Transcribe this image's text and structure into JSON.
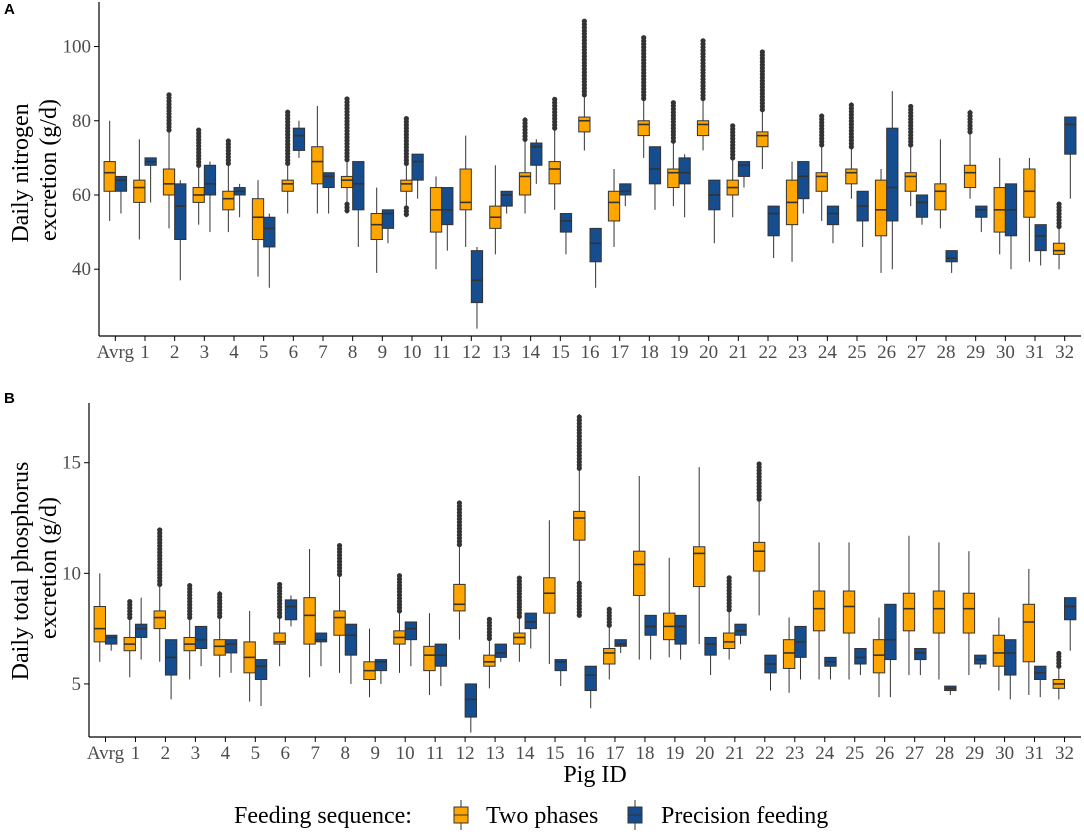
{
  "colors": {
    "two_phases": "#FFA500",
    "precision": "#154D8E",
    "outlier": "#333333",
    "axis": "#000000"
  },
  "chart_data": [
    {
      "type": "box",
      "panel": "A",
      "ylabel": [
        "Daily nitrogen",
        "excretion (g/d)"
      ],
      "xlabel": "",
      "ylim": [
        22,
        112
      ],
      "yticks": [
        40,
        60,
        80,
        100
      ],
      "categories": [
        "Avrg",
        "1",
        "2",
        "3",
        "4",
        "5",
        "6",
        "7",
        "8",
        "9",
        "10",
        "11",
        "12",
        "13",
        "14",
        "15",
        "16",
        "17",
        "18",
        "19",
        "20",
        "21",
        "22",
        "23",
        "24",
        "25",
        "26",
        "27",
        "28",
        "29",
        "30",
        "31",
        "32"
      ],
      "series": [
        {
          "name": "Two phases",
          "values": [
            [
              53,
              61,
              66,
              69,
              80
            ],
            [
              48,
              58,
              62,
              64,
              75
            ],
            [
              51,
              60,
              63,
              67,
              87
            ],
            [
              52,
              58,
              60,
              62,
              78
            ],
            [
              50,
              56,
              59,
              61,
              75
            ],
            [
              38,
              48,
              54,
              59,
              64
            ],
            [
              55,
              61,
              63,
              64,
              83
            ],
            [
              55,
              63,
              69,
              73,
              84
            ],
            [
              55,
              62,
              64,
              65,
              86
            ],
            [
              39,
              48,
              52,
              55,
              62
            ],
            [
              54,
              61,
              63,
              64,
              81
            ],
            [
              40,
              50,
              56,
              62,
              65
            ],
            [
              46,
              56,
              58,
              67,
              76
            ],
            [
              44,
              51,
              54,
              57,
              68
            ],
            [
              55,
              60,
              65,
              66,
              81
            ],
            [
              56,
              63,
              67,
              69,
              86
            ],
            [
              72,
              77,
              80,
              81,
              107
            ],
            [
              46,
              53,
              58,
              61,
              67
            ],
            [
              70,
              76,
              79,
              80,
              103
            ],
            [
              57,
              62,
              66,
              67,
              85
            ],
            [
              72,
              76,
              79,
              80,
              102
            ],
            [
              54,
              60,
              62,
              64,
              79
            ],
            [
              67,
              73,
              76,
              77,
              99
            ],
            [
              42,
              52,
              58,
              64,
              69
            ],
            [
              53,
              61,
              65,
              66,
              82
            ],
            [
              59,
              63,
              66,
              67,
              85
            ],
            [
              39,
              49,
              56,
              64,
              67
            ],
            [
              57,
              61,
              65,
              66,
              84
            ],
            [
              51,
              56,
              61,
              63,
              75
            ],
            [
              59,
              62,
              66,
              68,
              83
            ],
            [
              44,
              50,
              56,
              62,
              70
            ],
            [
              42,
              54,
              61,
              67,
              70
            ],
            [
              40,
              44,
              45,
              47,
              58
            ]
          ]
        },
        {
          "name": "Precision feeding",
          "values": [
            [
              55,
              61,
              64,
              65,
              65
            ],
            [
              58,
              68,
              69,
              70,
              70
            ],
            [
              37,
              48,
              57,
              63,
              64
            ],
            [
              50,
              60,
              63,
              68,
              69
            ],
            [
              54,
              60,
              61,
              62,
              63
            ],
            [
              35,
              46,
              51,
              54,
              55
            ],
            [
              70,
              72,
              76,
              78,
              80
            ],
            [
              55,
              62,
              65,
              66,
              66
            ],
            [
              46,
              56,
              63,
              69,
              69
            ],
            [
              47,
              51,
              55,
              56,
              56
            ],
            [
              59,
              64,
              69,
              71,
              71
            ],
            [
              45,
              52,
              56,
              62,
              62
            ],
            [
              24,
              31,
              37,
              45,
              46
            ],
            [
              55,
              57,
              60,
              61,
              61
            ],
            [
              63,
              68,
              73,
              74,
              75
            ],
            [
              44,
              50,
              53,
              55,
              55
            ],
            [
              35,
              42,
              47,
              51,
              51
            ],
            [
              57,
              60,
              61,
              63,
              63
            ],
            [
              56,
              63,
              67,
              73,
              73
            ],
            [
              54,
              63,
              66,
              70,
              71
            ],
            [
              47,
              56,
              60,
              64,
              64
            ],
            [
              62,
              65,
              68,
              69,
              69
            ],
            [
              43,
              49,
              55,
              57,
              57
            ],
            [
              55,
              59,
              65,
              69,
              69
            ],
            [
              47,
              52,
              55,
              57,
              57
            ],
            [
              46,
              53,
              57,
              61,
              61
            ],
            [
              40,
              53,
              62,
              78,
              88
            ],
            [
              52,
              54,
              58,
              60,
              60
            ],
            [
              39,
              42,
              43,
              45,
              45
            ],
            [
              50,
              54,
              56,
              57,
              57
            ],
            [
              40,
              49,
              56,
              63,
              63
            ],
            [
              41,
              45,
              49,
              52,
              52
            ],
            [
              59,
              71,
              79,
              81,
              81
            ]
          ]
        }
      ]
    },
    {
      "type": "box",
      "panel": "B",
      "ylabel": [
        "Daily total phosphorus",
        "excretion (g/d)"
      ],
      "xlabel": "Pig ID",
      "ylim": [
        2.6,
        17.7
      ],
      "yticks": [
        5,
        10,
        15
      ],
      "categories": [
        "Avrg",
        "1",
        "2",
        "3",
        "4",
        "5",
        "6",
        "7",
        "8",
        "9",
        "10",
        "11",
        "12",
        "13",
        "14",
        "15",
        "16",
        "17",
        "18",
        "19",
        "20",
        "21",
        "22",
        "23",
        "24",
        "25",
        "26",
        "27",
        "28",
        "29",
        "30",
        "31",
        "32"
      ],
      "series": [
        {
          "name": "Two phases",
          "values": [
            [
              6.0,
              6.9,
              7.5,
              8.5,
              10.0
            ],
            [
              5.3,
              6.5,
              6.8,
              7.1,
              8.8
            ],
            [
              6.0,
              7.5,
              8.0,
              8.3,
              12.0
            ],
            [
              5.2,
              6.5,
              6.8,
              7.1,
              9.5
            ],
            [
              5.3,
              6.3,
              6.7,
              7.0,
              9.2
            ],
            [
              4.2,
              5.5,
              6.2,
              6.9,
              8.3
            ],
            [
              5.8,
              6.8,
              6.9,
              7.3,
              9.5
            ],
            [
              5.3,
              6.8,
              8.1,
              8.9,
              11.1
            ],
            [
              5.5,
              7.2,
              8.0,
              8.3,
              11.3
            ],
            [
              4.4,
              5.2,
              5.6,
              6.0,
              7.5
            ],
            [
              5.5,
              6.8,
              7.1,
              7.4,
              10.0
            ],
            [
              4.5,
              5.6,
              6.3,
              6.7,
              8.2
            ],
            [
              7.0,
              8.3,
              8.6,
              9.5,
              13.2
            ],
            [
              4.8,
              5.8,
              6.0,
              6.3,
              8.0
            ],
            [
              6.0,
              6.8,
              7.1,
              7.3,
              9.8
            ],
            [
              5.9,
              8.2,
              9.1,
              9.8,
              12.4
            ],
            [
              8.0,
              11.5,
              12.5,
              12.8,
              17.2
            ],
            [
              5.2,
              5.9,
              6.4,
              6.6,
              8.5
            ],
            [
              6.1,
              9.0,
              10.4,
              11.0,
              14.4
            ],
            [
              6.2,
              7.0,
              7.6,
              8.2,
              10.7
            ],
            [
              6.8,
              9.4,
              10.9,
              11.2,
              14.8
            ],
            [
              6.1,
              6.6,
              6.9,
              7.3,
              9.9
            ],
            [
              8.1,
              10.1,
              11.0,
              11.4,
              15.0
            ],
            [
              4.6,
              5.7,
              6.4,
              7.0,
              8.0
            ],
            [
              5.2,
              7.4,
              8.4,
              9.2,
              11.4
            ],
            [
              5.2,
              7.3,
              8.5,
              9.2,
              11.4
            ],
            [
              4.4,
              5.5,
              6.3,
              7.0,
              8.0
            ],
            [
              5.4,
              7.4,
              8.4,
              9.1,
              11.7
            ],
            [
              5.2,
              7.3,
              8.4,
              9.2,
              11.4
            ],
            [
              5.4,
              7.3,
              8.4,
              9.1,
              11.0
            ],
            [
              4.7,
              5.8,
              6.4,
              7.2,
              8.0
            ],
            [
              4.5,
              6.0,
              7.8,
              8.6,
              10.2
            ],
            [
              4.3,
              4.8,
              5.0,
              5.2,
              6.4
            ]
          ]
        },
        {
          "name": "Precision feeding",
          "values": [
            [
              6.5,
              6.8,
              7.1,
              7.2,
              7.2
            ],
            [
              6.1,
              7.1,
              7.5,
              7.7,
              8.9
            ],
            [
              4.3,
              5.4,
              6.2,
              7.0,
              7.0
            ],
            [
              5.8,
              6.6,
              7.0,
              7.6,
              7.6
            ],
            [
              5.5,
              6.4,
              6.8,
              7.0,
              7.0
            ],
            [
              4.0,
              5.2,
              5.8,
              6.1,
              6.1
            ],
            [
              7.6,
              7.9,
              8.5,
              8.8,
              9.0
            ],
            [
              5.8,
              6.9,
              7.0,
              7.3,
              7.3
            ],
            [
              5.0,
              6.3,
              7.2,
              7.7,
              7.7
            ],
            [
              5.0,
              5.6,
              6.0,
              6.1,
              6.1
            ],
            [
              5.8,
              7.0,
              7.5,
              7.8,
              7.8
            ],
            [
              4.9,
              5.8,
              6.3,
              6.8,
              6.8
            ],
            [
              2.8,
              3.5,
              4.3,
              5.0,
              5.0
            ],
            [
              6.0,
              6.2,
              6.4,
              6.8,
              6.8
            ],
            [
              6.6,
              7.5,
              7.8,
              8.2,
              8.2
            ],
            [
              4.9,
              5.6,
              6.0,
              6.1,
              6.1
            ],
            [
              3.9,
              4.7,
              5.4,
              5.8,
              5.8
            ],
            [
              6.4,
              6.7,
              6.8,
              7.0,
              7.0
            ],
            [
              6.1,
              7.2,
              7.6,
              8.1,
              8.1
            ],
            [
              6.1,
              6.8,
              7.6,
              8.1,
              8.1
            ],
            [
              5.4,
              6.3,
              6.8,
              7.1,
              7.1
            ],
            [
              6.8,
              7.2,
              7.4,
              7.7,
              7.7
            ],
            [
              4.7,
              5.5,
              5.9,
              6.3,
              6.3
            ],
            [
              5.2,
              6.2,
              6.9,
              7.6,
              7.6
            ],
            [
              5.2,
              5.8,
              6.0,
              6.2,
              6.2
            ],
            [
              5.4,
              5.9,
              6.2,
              6.6,
              6.6
            ],
            [
              4.4,
              6.1,
              7.0,
              8.6,
              8.6
            ],
            [
              5.4,
              6.1,
              6.4,
              6.6,
              6.6
            ],
            [
              4.5,
              4.7,
              4.8,
              4.9,
              4.9
            ],
            [
              5.7,
              5.9,
              6.1,
              6.3,
              6.3
            ],
            [
              4.3,
              5.4,
              6.4,
              7.0,
              7.0
            ],
            [
              4.4,
              5.2,
              5.5,
              5.8,
              5.8
            ],
            [
              6.5,
              7.9,
              8.5,
              8.9,
              8.9
            ]
          ]
        }
      ]
    }
  ],
  "legend": {
    "title": "Feeding sequence:",
    "items": [
      "Two phases",
      "Precision feeding"
    ]
  }
}
